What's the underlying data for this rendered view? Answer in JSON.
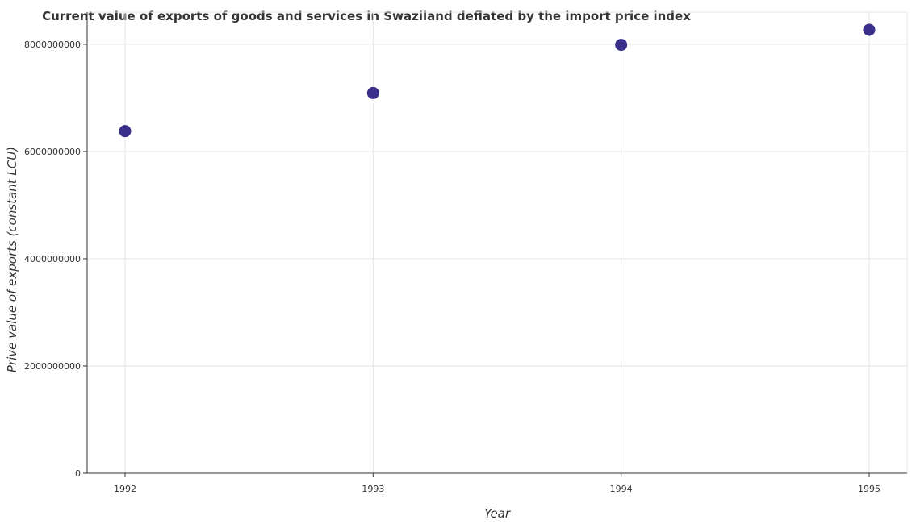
{
  "chart_data": {
    "type": "scatter",
    "title": "Current value of exports of goods and services in Swaziland deflated by the import price index",
    "xlabel": "Year",
    "ylabel": "Prive value of exports (constant LCU)",
    "categories": [
      "1992",
      "1993",
      "1994",
      "1995"
    ],
    "series": [
      {
        "values": [
          6380000000,
          7090000000,
          7990000000,
          8270000000
        ]
      }
    ],
    "y_ticks": [
      0,
      2000000000,
      4000000000,
      6000000000,
      8000000000
    ],
    "y_tick_labels": [
      "0",
      "2000000000",
      "4000000000",
      "6000000000",
      "8000000000"
    ],
    "ylim": [
      0,
      8600000000
    ],
    "grid": true,
    "colors": {
      "marker": "#3a2f8a",
      "grid": "#e6e6e6",
      "axis": "#333333"
    }
  }
}
